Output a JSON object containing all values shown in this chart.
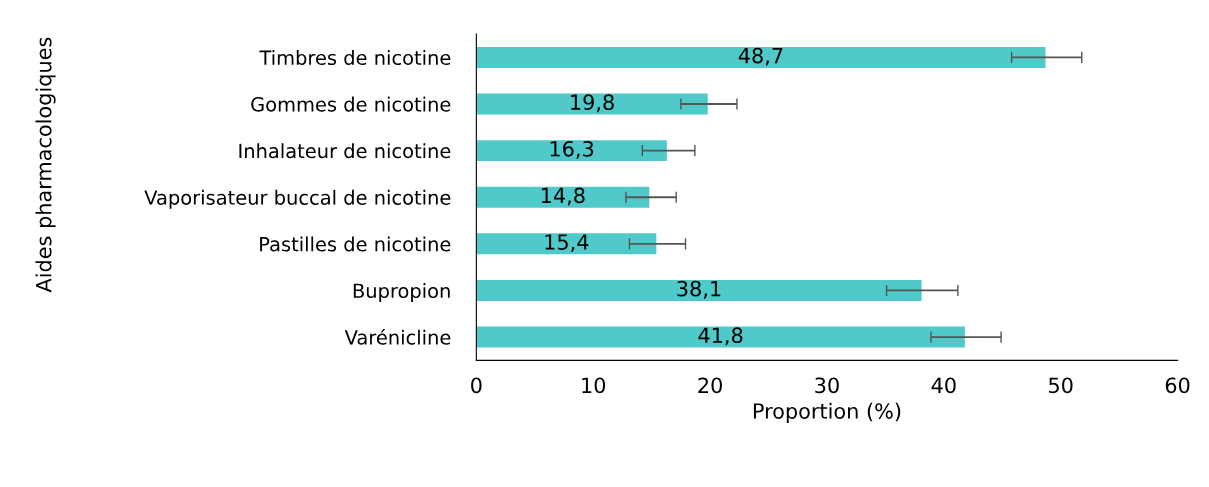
{
  "chart_data": {
    "type": "bar",
    "orientation": "horizontal",
    "xlabel": "Proportion (%)",
    "ylabel": "Aides pharmacologiques",
    "categories": [
      "Timbres de nicotine",
      "Gommes de nicotine",
      "Inhalateur de nicotine",
      "Vaporisateur buccal de nicotine",
      "Pastilles de nicotine",
      "Bupropion",
      "Varénicline"
    ],
    "values": [
      48.7,
      19.8,
      16.3,
      14.8,
      15.4,
      38.1,
      41.8
    ],
    "value_labels": [
      "48,7",
      "19,8",
      "16,3",
      "14,8",
      "15,4",
      "38,1",
      "41,8"
    ],
    "errors": [
      [
        45.8,
        51.8
      ],
      [
        17.5,
        22.3
      ],
      [
        14.2,
        18.7
      ],
      [
        12.8,
        17.1
      ],
      [
        13.1,
        17.9
      ],
      [
        35.1,
        41.2
      ],
      [
        38.9,
        44.9
      ]
    ],
    "color": "#4fc9c9",
    "xlim": [
      0,
      60
    ],
    "xticks": [
      0,
      10,
      20,
      30,
      40,
      50,
      60
    ],
    "grid": false,
    "legend": false
  }
}
